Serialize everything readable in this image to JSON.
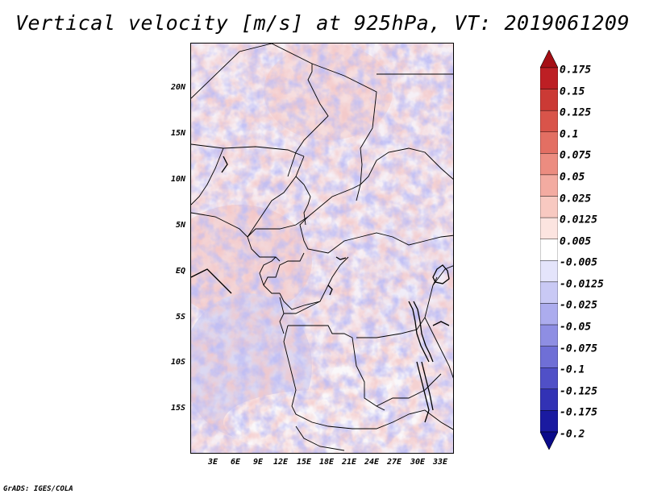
{
  "title": "Vertical velocity [m/s] at 925hPa, VT: 2019061209",
  "credit": "GrADS: IGES/COLA",
  "map": {
    "lat_labels": [
      "20N",
      "15N",
      "10N",
      "5N",
      "EQ",
      "5S",
      "10S",
      "15S"
    ],
    "lon_labels": [
      "3E",
      "6E",
      "9E",
      "12E",
      "15E",
      "18E",
      "21E",
      "24E",
      "27E",
      "30E",
      "33E"
    ]
  },
  "colorbar": {
    "labels": [
      "0.175",
      "0.15",
      "0.125",
      "0.1",
      "0.075",
      "0.05",
      "0.025",
      "0.0125",
      "0.005",
      "-0.005",
      "-0.0125",
      "-0.025",
      "-0.05",
      "-0.075",
      "-0.1",
      "-0.125",
      "-0.175",
      "-0.2"
    ],
    "colors": [
      "#a50f15",
      "#bd1f24",
      "#cb3a35",
      "#d9544a",
      "#e36f63",
      "#ec8c80",
      "#f3aba1",
      "#f8c9c1",
      "#fce4e0",
      "#ffffff",
      "#e4e4fb",
      "#c9c9f5",
      "#acacee",
      "#8e8ee3",
      "#6f6fd6",
      "#5050c7",
      "#3232b5",
      "#1a1aa0",
      "#0b0b8a"
    ],
    "top_arrow_color": "#a50f15",
    "bottom_arrow_color": "#0b0b8a"
  }
}
